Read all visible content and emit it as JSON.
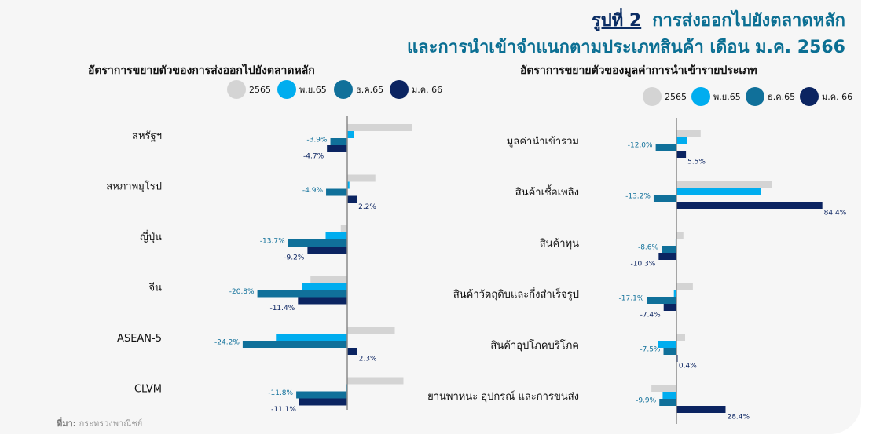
{
  "figure": {
    "label": "รูปที่ 2",
    "title_part1": "การส่งออกไปยังตลาดหลัก",
    "title_line2": "และการนำเข้าจำแนกตามประเภทสินค้า เดือน ม.ค. 2566"
  },
  "source": {
    "prefix": "ที่มา:",
    "text": "กระทรวงพาณิชย์"
  },
  "colors": {
    "2565": "#d4d4d4",
    "nov65": "#00adef",
    "dec65": "#10709a",
    "jan66": "#0b2461"
  },
  "chart_data": [
    {
      "type": "bar",
      "orientation": "horizontal",
      "title": "อัตราการขยายตัวของการส่งออกไปยังตลาดหลัก",
      "legend": [
        "2565",
        "พ.ย.65",
        "ธ.ค.65",
        "ม.ค. 66"
      ],
      "legend_position": "top",
      "categories": [
        "สหรัฐฯ",
        "สหภาพยุโรป",
        "ญี่ปุ่น",
        "จีน",
        "ASEAN-5",
        "CLVM"
      ],
      "xlim": [
        -30,
        17
      ],
      "series": [
        {
          "name": "2565",
          "values": [
            15.0,
            6.5,
            -1.5,
            -8.5,
            11.0,
            13.0
          ]
        },
        {
          "name": "พ.ย.65",
          "values": [
            1.5,
            0.5,
            -5.0,
            -10.5,
            -16.5,
            -0.2
          ]
        },
        {
          "name": "ธ.ค.65",
          "values": [
            -3.9,
            -4.9,
            -13.7,
            -20.8,
            -24.2,
            -11.8
          ]
        },
        {
          "name": "ม.ค. 66",
          "values": [
            -4.7,
            2.2,
            -9.2,
            -11.4,
            2.3,
            -11.1
          ]
        }
      ],
      "data_labels": {
        "ธ.ค.65": [
          "-3.9%",
          "-4.9%",
          "-13.7%",
          "-20.8%",
          "-24.2%",
          "-11.8%"
        ],
        "ม.ค. 66": [
          "-4.7%",
          "2.2%",
          "-9.2%",
          "-11.4%",
          "2.3%",
          "-11.1%"
        ]
      }
    },
    {
      "type": "bar",
      "orientation": "horizontal",
      "title": "อัตราการขยายตัวของมูลค่าการนำเข้ารายประเภท",
      "legend": [
        "2565",
        "พ.ย.65",
        "ธ.ค.65",
        "ม.ค. 66"
      ],
      "legend_position": "top",
      "categories": [
        "มูลค่านำเข้ารวม",
        "สินค้าเชื้อเพลิง",
        "สินค้าทุน",
        "สินค้าวัตถุดิบและกึ่งสำเร็จรูป",
        "สินค้าอุปโภคบริโภค",
        "ยานพาหนะ อุปกรณ์ และการขนส่ง"
      ],
      "xlim": [
        -25,
        88
      ],
      "series": [
        {
          "name": "2565",
          "values": [
            14.0,
            55.0,
            4.0,
            9.5,
            5.0,
            -14.5
          ]
        },
        {
          "name": "พ.ย.65",
          "values": [
            6.0,
            49.0,
            -0.5,
            -1.5,
            -10.5,
            -8.0
          ]
        },
        {
          "name": "ธ.ค.65",
          "values": [
            -12.0,
            -13.2,
            -8.6,
            -17.1,
            -7.5,
            -9.9
          ]
        },
        {
          "name": "ม.ค. 66",
          "values": [
            5.5,
            84.4,
            -10.3,
            -7.4,
            0.4,
            28.4
          ]
        }
      ],
      "data_labels": {
        "ธ.ค.65": [
          "-12.0%",
          "-13.2%",
          "-8.6%",
          "-17.1%",
          "-7.5%",
          "-9.9%"
        ],
        "ม.ค. 66": [
          "5.5%",
          "84.4%",
          "-10.3%",
          "-7.4%",
          "0.4%",
          "28.4%"
        ]
      }
    }
  ]
}
